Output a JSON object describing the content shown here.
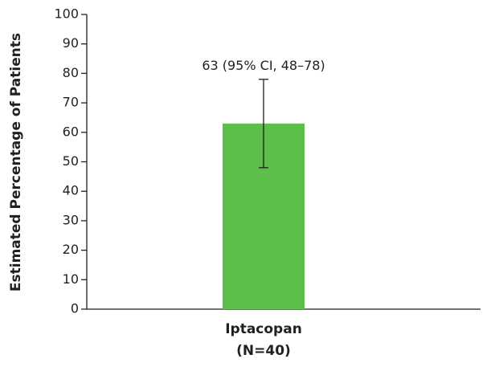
{
  "chart_data": {
    "type": "bar",
    "ylabel": "Estimated Percentage of Patients",
    "categories": [
      "Iptacopan\n(N=40)"
    ],
    "values": [
      63
    ],
    "ci_low": [
      48
    ],
    "ci_high": [
      78
    ],
    "annotations": [
      "63 (95% CI, 48–78)"
    ],
    "color": "#5bbf4a",
    "ylim": [
      0,
      100
    ],
    "yticks": [
      0,
      10,
      20,
      30,
      40,
      50,
      60,
      70,
      80,
      90,
      100
    ],
    "grid": false
  }
}
